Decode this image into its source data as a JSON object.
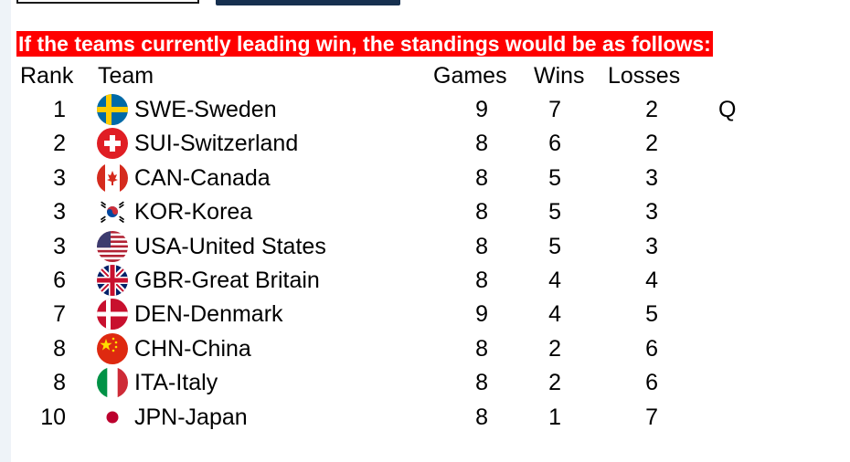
{
  "banner": "If the teams currently leading win, the standings would be as follows:",
  "headers": {
    "rank": "Rank",
    "team": "Team",
    "games": "Games",
    "wins": "Wins",
    "losses": "Losses"
  },
  "rows": [
    {
      "rank": "1",
      "flag": "sweden-flag-icon",
      "team": "SWE-Sweden",
      "games": "9",
      "wins": "7",
      "losses": "2",
      "status": "Q"
    },
    {
      "rank": "2",
      "flag": "switzerland-flag-icon",
      "team": "SUI-Switzerland",
      "games": "8",
      "wins": "6",
      "losses": "2",
      "status": ""
    },
    {
      "rank": "3",
      "flag": "canada-flag-icon",
      "team": "CAN-Canada",
      "games": "8",
      "wins": "5",
      "losses": "3",
      "status": ""
    },
    {
      "rank": "3",
      "flag": "korea-flag-icon",
      "team": "KOR-Korea",
      "games": "8",
      "wins": "5",
      "losses": "3",
      "status": ""
    },
    {
      "rank": "3",
      "flag": "usa-flag-icon",
      "team": "USA-United States",
      "games": "8",
      "wins": "5",
      "losses": "3",
      "status": ""
    },
    {
      "rank": "6",
      "flag": "great-britain-flag-icon",
      "team": "GBR-Great Britain",
      "games": "8",
      "wins": "4",
      "losses": "4",
      "status": ""
    },
    {
      "rank": "7",
      "flag": "denmark-flag-icon",
      "team": "DEN-Denmark",
      "games": "9",
      "wins": "4",
      "losses": "5",
      "status": ""
    },
    {
      "rank": "8",
      "flag": "china-flag-icon",
      "team": "CHN-China",
      "games": "8",
      "wins": "2",
      "losses": "6",
      "status": ""
    },
    {
      "rank": "8",
      "flag": "italy-flag-icon",
      "team": "ITA-Italy",
      "games": "8",
      "wins": "2",
      "losses": "6",
      "status": ""
    },
    {
      "rank": "10",
      "flag": "japan-flag-icon",
      "team": "JPN-Japan",
      "games": "8",
      "wins": "1",
      "losses": "7",
      "status": ""
    }
  ],
  "colors": {
    "banner_bg": "#ff0000",
    "banner_text": "#ffffff",
    "top_dark_button": "#16304f"
  }
}
